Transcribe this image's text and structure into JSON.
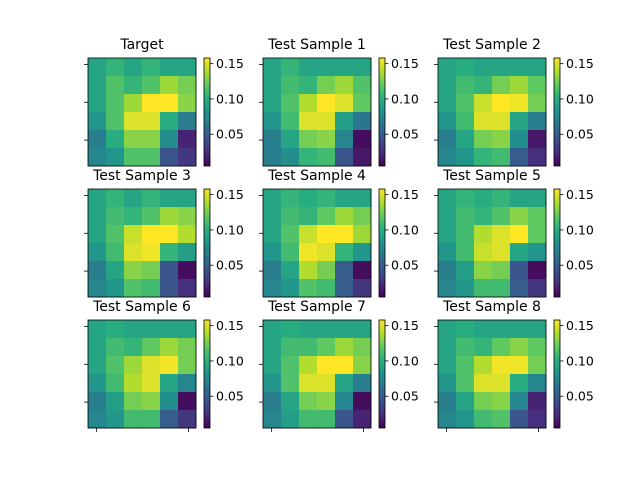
{
  "chart_data": {
    "type": "heatmap",
    "layout": {
      "rows": 3,
      "cols": 3
    },
    "colormap": "viridis",
    "color_range": [
      0.005,
      0.158
    ],
    "colorbar_ticks": [
      "0.05",
      "0.10",
      "0.15"
    ],
    "colorbar_tick_values": [
      0.05,
      0.1,
      0.15
    ],
    "axis_ticks_labeled": false,
    "panels": [
      {
        "title": "Target",
        "grid": [
          [
            0.095,
            0.105,
            0.095,
            0.105,
            0.095,
            0.095
          ],
          [
            0.095,
            0.115,
            0.105,
            0.115,
            0.135,
            0.125
          ],
          [
            0.095,
            0.115,
            0.135,
            0.158,
            0.158,
            0.13
          ],
          [
            0.085,
            0.115,
            0.15,
            0.15,
            0.1,
            0.07
          ],
          [
            0.07,
            0.1,
            0.13,
            0.13,
            0.08,
            0.02
          ],
          [
            0.075,
            0.085,
            0.115,
            0.115,
            0.045,
            0.03
          ]
        ]
      },
      {
        "title": "Test Sample 1",
        "grid": [
          [
            0.095,
            0.105,
            0.095,
            0.095,
            0.095,
            0.095
          ],
          [
            0.095,
            0.11,
            0.105,
            0.125,
            0.135,
            0.115
          ],
          [
            0.095,
            0.115,
            0.14,
            0.158,
            0.15,
            0.12
          ],
          [
            0.085,
            0.11,
            0.15,
            0.15,
            0.09,
            0.065
          ],
          [
            0.07,
            0.095,
            0.125,
            0.13,
            0.075,
            0.01
          ],
          [
            0.07,
            0.08,
            0.105,
            0.11,
            0.045,
            0.015
          ]
        ]
      },
      {
        "title": "Test Sample 2",
        "grid": [
          [
            0.095,
            0.1,
            0.095,
            0.095,
            0.095,
            0.095
          ],
          [
            0.095,
            0.11,
            0.105,
            0.125,
            0.135,
            0.12
          ],
          [
            0.095,
            0.115,
            0.145,
            0.158,
            0.155,
            0.125
          ],
          [
            0.085,
            0.11,
            0.15,
            0.15,
            0.095,
            0.07
          ],
          [
            0.07,
            0.095,
            0.125,
            0.13,
            0.08,
            0.015
          ],
          [
            0.075,
            0.085,
            0.105,
            0.11,
            0.05,
            0.025
          ]
        ]
      },
      {
        "title": "Test Sample 3",
        "grid": [
          [
            0.095,
            0.105,
            0.095,
            0.105,
            0.095,
            0.095
          ],
          [
            0.095,
            0.11,
            0.105,
            0.115,
            0.135,
            0.13
          ],
          [
            0.095,
            0.115,
            0.145,
            0.158,
            0.158,
            0.14
          ],
          [
            0.085,
            0.11,
            0.15,
            0.155,
            0.105,
            0.09
          ],
          [
            0.07,
            0.095,
            0.13,
            0.125,
            0.045,
            0.01
          ],
          [
            0.075,
            0.085,
            0.115,
            0.11,
            0.045,
            0.025
          ]
        ]
      },
      {
        "title": "Test Sample 4",
        "grid": [
          [
            0.095,
            0.105,
            0.1,
            0.105,
            0.095,
            0.095
          ],
          [
            0.095,
            0.11,
            0.105,
            0.12,
            0.135,
            0.125
          ],
          [
            0.095,
            0.115,
            0.145,
            0.158,
            0.158,
            0.135
          ],
          [
            0.085,
            0.11,
            0.155,
            0.15,
            0.105,
            0.085
          ],
          [
            0.07,
            0.095,
            0.14,
            0.125,
            0.05,
            0.01
          ],
          [
            0.075,
            0.085,
            0.115,
            0.11,
            0.05,
            0.03
          ]
        ]
      },
      {
        "title": "Test Sample 5",
        "grid": [
          [
            0.095,
            0.105,
            0.1,
            0.105,
            0.095,
            0.095
          ],
          [
            0.095,
            0.11,
            0.105,
            0.115,
            0.13,
            0.12
          ],
          [
            0.095,
            0.11,
            0.14,
            0.15,
            0.158,
            0.12
          ],
          [
            0.085,
            0.11,
            0.145,
            0.15,
            0.095,
            0.085
          ],
          [
            0.07,
            0.09,
            0.13,
            0.125,
            0.045,
            0.01
          ],
          [
            0.075,
            0.085,
            0.11,
            0.11,
            0.05,
            0.03
          ]
        ]
      },
      {
        "title": "Test Sample 6",
        "grid": [
          [
            0.095,
            0.1,
            0.095,
            0.095,
            0.095,
            0.095
          ],
          [
            0.095,
            0.11,
            0.105,
            0.12,
            0.135,
            0.125
          ],
          [
            0.095,
            0.115,
            0.135,
            0.15,
            0.155,
            0.125
          ],
          [
            0.085,
            0.11,
            0.14,
            0.15,
            0.095,
            0.075
          ],
          [
            0.07,
            0.09,
            0.125,
            0.13,
            0.08,
            0.01
          ],
          [
            0.075,
            0.085,
            0.11,
            0.11,
            0.05,
            0.03
          ]
        ]
      },
      {
        "title": "Test Sample 7",
        "grid": [
          [
            0.095,
            0.1,
            0.095,
            0.095,
            0.095,
            0.095
          ],
          [
            0.095,
            0.11,
            0.11,
            0.12,
            0.135,
            0.125
          ],
          [
            0.095,
            0.115,
            0.14,
            0.158,
            0.158,
            0.13
          ],
          [
            0.085,
            0.115,
            0.15,
            0.15,
            0.095,
            0.07
          ],
          [
            0.07,
            0.095,
            0.125,
            0.13,
            0.075,
            0.01
          ],
          [
            0.075,
            0.09,
            0.11,
            0.11,
            0.045,
            0.02
          ]
        ]
      },
      {
        "title": "Test Sample 8",
        "grid": [
          [
            0.095,
            0.1,
            0.095,
            0.095,
            0.095,
            0.095
          ],
          [
            0.095,
            0.11,
            0.105,
            0.12,
            0.13,
            0.12
          ],
          [
            0.095,
            0.115,
            0.14,
            0.155,
            0.155,
            0.125
          ],
          [
            0.085,
            0.115,
            0.15,
            0.15,
            0.1,
            0.075
          ],
          [
            0.07,
            0.095,
            0.125,
            0.13,
            0.075,
            0.02
          ],
          [
            0.075,
            0.085,
            0.11,
            0.115,
            0.045,
            0.025
          ]
        ]
      }
    ]
  }
}
